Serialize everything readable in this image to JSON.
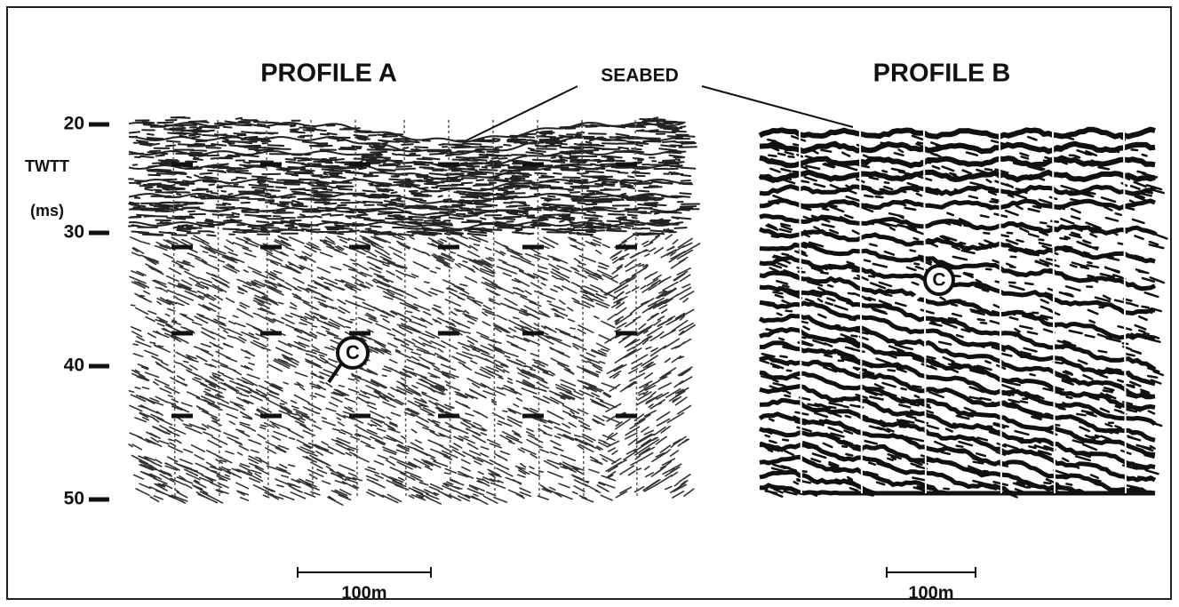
{
  "profiles": [
    {
      "title": "PROFILE A",
      "marker": "C",
      "scale_label": "100m"
    },
    {
      "title": "PROFILE B",
      "marker": "C",
      "scale_label": "100m"
    }
  ],
  "seabed_label": "SEABED",
  "axis": {
    "label": "TWTT",
    "unit": "(ms)",
    "ticks": [
      20,
      30,
      40,
      50
    ]
  }
}
